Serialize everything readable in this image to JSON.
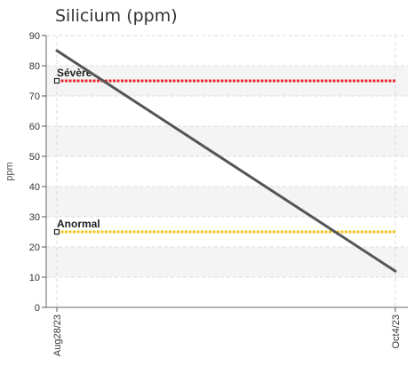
{
  "chart_data": {
    "type": "line",
    "title": "Silicium (ppm)",
    "ylabel": "ppm",
    "xlabel": "",
    "ylim": [
      0,
      90
    ],
    "yticks": [
      0,
      10,
      20,
      30,
      40,
      50,
      60,
      70,
      80,
      90
    ],
    "x": [
      "Aug28/23",
      "Oct4/23"
    ],
    "series": [
      {
        "values": [
          85,
          12
        ],
        "color": "#555555"
      }
    ],
    "thresholds": [
      {
        "label": "Sévère",
        "value": 75,
        "color": "#e8262b"
      },
      {
        "label": "Anormal",
        "value": 25,
        "color": "#f2c318"
      }
    ],
    "grid": true,
    "legend": "none"
  }
}
